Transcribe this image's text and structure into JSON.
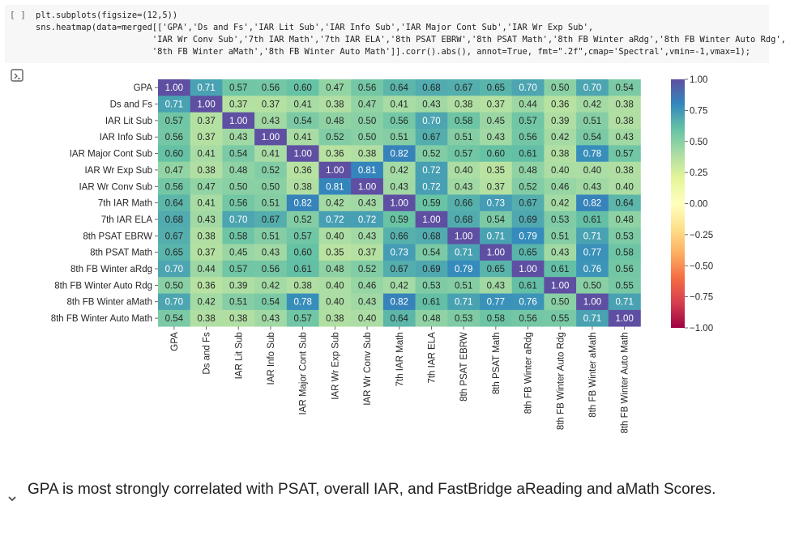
{
  "cell": {
    "bracket": "[ ]",
    "code_lines": [
      "plt.subplots(figsize=(12,5))",
      "sns.heatmap(data=merged[['GPA','Ds and Fs','IAR Lit Sub','IAR Info Sub','IAR Major Cont Sub','IAR Wr Exp Sub',",
      "                       'IAR Wr Conv Sub','7th IAR Math','7th IAR ELA','8th PSAT EBRW','8th PSAT Math','8th FB Winter aRdg','8th FB Winter Auto Rdg',",
      "                       '8th FB Winter aMath','8th FB Winter Auto Math']].corr().abs(), annot=True, fmt=\".2f\",cmap='Spectral',vmin=-1,vmax=1);"
    ],
    "output_icon": "output-toggle-icon"
  },
  "chart_data": {
    "type": "heatmap",
    "labels": [
      "GPA",
      "Ds and Fs",
      "IAR Lit Sub",
      "IAR Info Sub",
      "IAR Major Cont Sub",
      "IAR Wr Exp Sub",
      "IAR Wr Conv Sub",
      "7th IAR Math",
      "7th IAR ELA",
      "8th PSAT EBRW",
      "8th PSAT Math",
      "8th FB Winter aRdg",
      "8th FB Winter Auto Rdg",
      "8th FB Winter aMath",
      "8th FB Winter Auto Math"
    ],
    "values": [
      [
        1.0,
        0.71,
        0.57,
        0.56,
        0.6,
        0.47,
        0.56,
        0.64,
        0.68,
        0.67,
        0.65,
        0.7,
        0.5,
        0.7,
        0.54
      ],
      [
        0.71,
        1.0,
        0.37,
        0.37,
        0.41,
        0.38,
        0.47,
        0.41,
        0.43,
        0.38,
        0.37,
        0.44,
        0.36,
        0.42,
        0.38
      ],
      [
        0.57,
        0.37,
        1.0,
        0.43,
        0.54,
        0.48,
        0.5,
        0.56,
        0.7,
        0.58,
        0.45,
        0.57,
        0.39,
        0.51,
        0.38
      ],
      [
        0.56,
        0.37,
        0.43,
        1.0,
        0.41,
        0.52,
        0.5,
        0.51,
        0.67,
        0.51,
        0.43,
        0.56,
        0.42,
        0.54,
        0.43
      ],
      [
        0.6,
        0.41,
        0.54,
        0.41,
        1.0,
        0.36,
        0.38,
        0.82,
        0.52,
        0.57,
        0.6,
        0.61,
        0.38,
        0.78,
        0.57
      ],
      [
        0.47,
        0.38,
        0.48,
        0.52,
        0.36,
        1.0,
        0.81,
        0.42,
        0.72,
        0.4,
        0.35,
        0.48,
        0.4,
        0.4,
        0.38
      ],
      [
        0.56,
        0.47,
        0.5,
        0.5,
        0.38,
        0.81,
        1.0,
        0.43,
        0.72,
        0.43,
        0.37,
        0.52,
        0.46,
        0.43,
        0.4
      ],
      [
        0.64,
        0.41,
        0.56,
        0.51,
        0.82,
        0.42,
        0.43,
        1.0,
        0.59,
        0.66,
        0.73,
        0.67,
        0.42,
        0.82,
        0.64
      ],
      [
        0.68,
        0.43,
        0.7,
        0.67,
        0.52,
        0.72,
        0.72,
        0.59,
        1.0,
        0.68,
        0.54,
        0.69,
        0.53,
        0.61,
        0.48
      ],
      [
        0.67,
        0.38,
        0.58,
        0.51,
        0.57,
        0.4,
        0.43,
        0.66,
        0.68,
        1.0,
        0.71,
        0.79,
        0.51,
        0.71,
        0.53
      ],
      [
        0.65,
        0.37,
        0.45,
        0.43,
        0.6,
        0.35,
        0.37,
        0.73,
        0.54,
        0.71,
        1.0,
        0.65,
        0.43,
        0.77,
        0.58
      ],
      [
        0.7,
        0.44,
        0.57,
        0.56,
        0.61,
        0.48,
        0.52,
        0.67,
        0.69,
        0.79,
        0.65,
        1.0,
        0.61,
        0.76,
        0.56
      ],
      [
        0.5,
        0.36,
        0.39,
        0.42,
        0.38,
        0.4,
        0.46,
        0.42,
        0.53,
        0.51,
        0.43,
        0.61,
        1.0,
        0.5,
        0.55
      ],
      [
        0.7,
        0.42,
        0.51,
        0.54,
        0.78,
        0.4,
        0.43,
        0.82,
        0.61,
        0.71,
        0.77,
        0.76,
        0.5,
        1.0,
        0.71
      ],
      [
        0.54,
        0.38,
        0.38,
        0.43,
        0.57,
        0.38,
        0.4,
        0.64,
        0.48,
        0.53,
        0.58,
        0.56,
        0.55,
        0.71,
        1.0
      ]
    ],
    "vmin": -1,
    "vmax": 1,
    "colormap": "Spectral",
    "colorbar_ticks": [
      "1.00",
      "0.75",
      "0.50",
      "0.25",
      "0.00",
      "−0.25",
      "−0.50",
      "−0.75",
      "−1.00"
    ],
    "colorbar_tick_values": [
      1.0,
      0.75,
      0.5,
      0.25,
      0.0,
      -0.25,
      -0.5,
      -0.75,
      -1.0
    ],
    "legend": "right"
  },
  "markdown": {
    "text": "GPA is most strongly correlated with PSAT, overall IAR, and FastBridge aReading and aMath Scores.",
    "collapse_icon": "chevron-down-icon"
  }
}
